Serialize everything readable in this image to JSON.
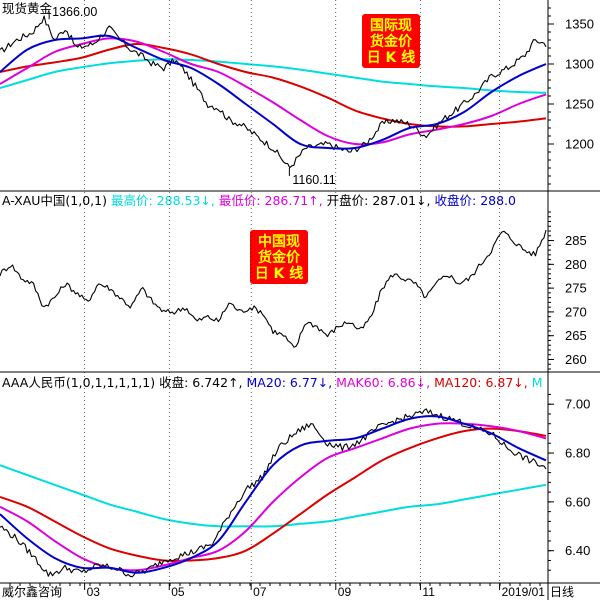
{
  "app": {
    "brand": "威尔鑫咨询",
    "period_label": "日线"
  },
  "colors": {
    "price": "#000000",
    "ma20": "#0000cc",
    "ma60": "#dd00dd",
    "ma120": "#dd0000",
    "ma250": "#00dddd",
    "badge_bg": "#ff0000",
    "badge_text": "#ffff00",
    "grid": "#000000"
  },
  "chart_data": [
    {
      "type": "line",
      "panel": "spot-gold",
      "title": "现货黄金",
      "badge": [
        "国际现",
        "货金价",
        "日 K 线"
      ],
      "ylim": [
        1145,
        1375
      ],
      "yticks": [
        1200,
        1250,
        1300,
        1350
      ],
      "annotations": [
        {
          "text": "1366.00",
          "x": 0.09,
          "y": 1366
        },
        {
          "text": "1160.11",
          "x": 0.53,
          "y": 1160.11
        }
      ],
      "series": [
        {
          "key": "price",
          "x": [
            0,
            0.03,
            0.06,
            0.08,
            0.1,
            0.12,
            0.14,
            0.17,
            0.2,
            0.22,
            0.24,
            0.26,
            0.28,
            0.3,
            0.32,
            0.34,
            0.36,
            0.38,
            0.4,
            0.42,
            0.44,
            0.47,
            0.5,
            0.53,
            0.56,
            0.6,
            0.64,
            0.67,
            0.7,
            0.72,
            0.75,
            0.78,
            0.81,
            0.84,
            0.87,
            0.9,
            0.93,
            0.96,
            0.98,
            1.0
          ],
          "values": [
            1315,
            1330,
            1340,
            1358,
            1330,
            1345,
            1320,
            1325,
            1345,
            1330,
            1318,
            1310,
            1300,
            1295,
            1305,
            1290,
            1270,
            1250,
            1245,
            1230,
            1225,
            1210,
            1195,
            1170,
            1195,
            1200,
            1190,
            1200,
            1225,
            1230,
            1225,
            1210,
            1230,
            1245,
            1262,
            1285,
            1295,
            1310,
            1330,
            1325
          ]
        },
        {
          "key": "ma20",
          "x": [
            0,
            0.05,
            0.1,
            0.15,
            0.2,
            0.25,
            0.3,
            0.35,
            0.4,
            0.45,
            0.5,
            0.55,
            0.6,
            0.65,
            0.7,
            0.75,
            0.8,
            0.85,
            0.9,
            0.95,
            1.0
          ],
          "values": [
            1290,
            1318,
            1330,
            1332,
            1335,
            1320,
            1305,
            1295,
            1275,
            1250,
            1225,
            1200,
            1195,
            1195,
            1205,
            1220,
            1225,
            1240,
            1265,
            1285,
            1300
          ]
        },
        {
          "key": "ma60",
          "x": [
            0,
            0.05,
            0.1,
            0.15,
            0.2,
            0.25,
            0.3,
            0.35,
            0.4,
            0.45,
            0.5,
            0.55,
            0.6,
            0.65,
            0.7,
            0.75,
            0.8,
            0.85,
            0.9,
            0.95,
            1.0
          ],
          "values": [
            1275,
            1295,
            1315,
            1325,
            1332,
            1328,
            1315,
            1300,
            1290,
            1272,
            1252,
            1230,
            1210,
            1200,
            1202,
            1212,
            1218,
            1225,
            1235,
            1250,
            1262
          ]
        },
        {
          "key": "ma120",
          "x": [
            0,
            0.05,
            0.1,
            0.15,
            0.2,
            0.25,
            0.3,
            0.35,
            0.4,
            0.45,
            0.5,
            0.55,
            0.6,
            0.65,
            0.7,
            0.75,
            0.8,
            0.85,
            0.9,
            0.95,
            1.0
          ],
          "values": [
            1290,
            1297,
            1302,
            1308,
            1318,
            1325,
            1320,
            1312,
            1300,
            1290,
            1283,
            1272,
            1258,
            1242,
            1232,
            1225,
            1222,
            1222,
            1225,
            1228,
            1232
          ]
        },
        {
          "key": "ma250",
          "x": [
            0,
            0.05,
            0.1,
            0.15,
            0.2,
            0.25,
            0.3,
            0.35,
            0.4,
            0.45,
            0.5,
            0.55,
            0.6,
            0.65,
            0.7,
            0.75,
            0.8,
            0.85,
            0.9,
            0.95,
            1.0
          ],
          "values": [
            1270,
            1280,
            1290,
            1296,
            1301,
            1304,
            1306,
            1305,
            1303,
            1300,
            1297,
            1293,
            1288,
            1283,
            1278,
            1275,
            1272,
            1270,
            1267,
            1265,
            1264
          ]
        }
      ]
    },
    {
      "type": "line",
      "panel": "a-xau",
      "legend": [
        {
          "text": "A-XAU中国(1,0,1)",
          "color": "#000000"
        },
        {
          "text": "最高价: 288.53↓,",
          "color": "#00dddd"
        },
        {
          "text": "最低价: 286.71↑,",
          "color": "#dd00dd"
        },
        {
          "text": "开盘价: 287.01↓,",
          "color": "#000000"
        },
        {
          "text": "收盘价: 288.0",
          "color": "#0000cc"
        }
      ],
      "badge": [
        "中国现",
        "货金价",
        "日 K 线"
      ],
      "ylim": [
        258,
        291
      ],
      "yticks": [
        260,
        265,
        270,
        275,
        280,
        285
      ],
      "series": [
        {
          "key": "price",
          "x": [
            0,
            0.02,
            0.04,
            0.06,
            0.08,
            0.1,
            0.12,
            0.14,
            0.16,
            0.18,
            0.2,
            0.22,
            0.24,
            0.26,
            0.28,
            0.3,
            0.32,
            0.34,
            0.36,
            0.38,
            0.4,
            0.42,
            0.44,
            0.46,
            0.48,
            0.5,
            0.52,
            0.54,
            0.56,
            0.58,
            0.6,
            0.62,
            0.64,
            0.66,
            0.68,
            0.7,
            0.72,
            0.74,
            0.76,
            0.78,
            0.8,
            0.82,
            0.84,
            0.86,
            0.88,
            0.9,
            0.92,
            0.94,
            0.96,
            0.98,
            1.0
          ],
          "values": [
            278,
            280,
            277,
            276,
            271,
            273,
            276,
            274,
            272,
            276,
            275,
            273,
            271,
            275,
            272,
            270,
            270,
            271,
            268,
            269,
            268,
            272,
            270,
            271,
            270,
            266,
            265,
            262,
            268,
            267,
            265,
            267,
            268,
            266,
            269,
            275,
            278,
            277,
            276,
            273,
            276,
            278,
            276,
            277,
            280,
            283,
            287,
            285,
            283,
            282,
            287
          ]
        }
      ]
    },
    {
      "type": "line",
      "panel": "aaa-cny",
      "legend": [
        {
          "text": "AAA人民币(1,0,1,1,1,1,1)",
          "color": "#000000"
        },
        {
          "text": "收盘: 6.742↑,",
          "color": "#000000"
        },
        {
          "text": "MA20: 6.77↓,",
          "color": "#0000cc"
        },
        {
          "text": "MAK60: 6.86↓,",
          "color": "#dd00dd"
        },
        {
          "text": "MA120: 6.87↓,",
          "color": "#dd0000"
        },
        {
          "text": "M",
          "color": "#00dddd"
        }
      ],
      "ylim": [
        6.28,
        7.05
      ],
      "yticks": [
        6.4,
        6.6,
        6.8,
        7.0
      ],
      "xticks": [
        "03",
        "05",
        "07",
        "09",
        "11",
        "2019/01"
      ],
      "series": [
        {
          "key": "price",
          "x": [
            0,
            0.03,
            0.06,
            0.09,
            0.12,
            0.15,
            0.18,
            0.21,
            0.24,
            0.27,
            0.3,
            0.33,
            0.36,
            0.39,
            0.42,
            0.45,
            0.48,
            0.51,
            0.54,
            0.57,
            0.6,
            0.63,
            0.66,
            0.69,
            0.72,
            0.75,
            0.78,
            0.81,
            0.84,
            0.87,
            0.9,
            0.93,
            0.96,
            1.0
          ],
          "values": [
            6.5,
            6.45,
            6.38,
            6.3,
            6.33,
            6.31,
            6.34,
            6.33,
            6.3,
            6.32,
            6.36,
            6.38,
            6.4,
            6.43,
            6.55,
            6.65,
            6.7,
            6.82,
            6.88,
            6.92,
            6.84,
            6.82,
            6.85,
            6.9,
            6.93,
            6.95,
            6.97,
            6.95,
            6.93,
            6.9,
            6.88,
            6.82,
            6.78,
            6.74
          ]
        },
        {
          "key": "ma20",
          "x": [
            0,
            0.05,
            0.1,
            0.15,
            0.2,
            0.25,
            0.3,
            0.35,
            0.4,
            0.45,
            0.5,
            0.55,
            0.6,
            0.65,
            0.7,
            0.75,
            0.8,
            0.85,
            0.9,
            0.95,
            1.0
          ],
          "values": [
            6.55,
            6.45,
            6.37,
            6.33,
            6.33,
            6.31,
            6.33,
            6.37,
            6.44,
            6.6,
            6.75,
            6.83,
            6.85,
            6.86,
            6.9,
            6.94,
            6.95,
            6.92,
            6.88,
            6.82,
            6.77
          ]
        },
        {
          "key": "ma60",
          "x": [
            0,
            0.05,
            0.1,
            0.15,
            0.2,
            0.25,
            0.3,
            0.35,
            0.4,
            0.45,
            0.5,
            0.55,
            0.6,
            0.65,
            0.7,
            0.75,
            0.8,
            0.85,
            0.9,
            0.95,
            1.0
          ],
          "values": [
            6.58,
            6.52,
            6.44,
            6.37,
            6.33,
            6.32,
            6.34,
            6.37,
            6.4,
            6.48,
            6.6,
            6.7,
            6.78,
            6.82,
            6.86,
            6.9,
            6.92,
            6.92,
            6.91,
            6.89,
            6.86
          ]
        },
        {
          "key": "ma120",
          "x": [
            0,
            0.05,
            0.1,
            0.15,
            0.2,
            0.25,
            0.3,
            0.35,
            0.4,
            0.45,
            0.5,
            0.55,
            0.6,
            0.65,
            0.7,
            0.75,
            0.8,
            0.85,
            0.9,
            0.95,
            1.0
          ],
          "values": [
            6.62,
            6.58,
            6.52,
            6.46,
            6.41,
            6.38,
            6.36,
            6.36,
            6.37,
            6.4,
            6.47,
            6.55,
            6.63,
            6.7,
            6.77,
            6.82,
            6.86,
            6.89,
            6.9,
            6.89,
            6.87
          ]
        },
        {
          "key": "ma250",
          "x": [
            0,
            0.05,
            0.1,
            0.15,
            0.2,
            0.25,
            0.3,
            0.35,
            0.4,
            0.45,
            0.5,
            0.55,
            0.6,
            0.65,
            0.7,
            0.75,
            0.8,
            0.85,
            0.9,
            0.95,
            1.0
          ],
          "values": [
            6.75,
            6.71,
            6.67,
            6.63,
            6.59,
            6.56,
            6.53,
            6.51,
            6.5,
            6.5,
            6.5,
            6.51,
            6.52,
            6.54,
            6.56,
            6.58,
            6.59,
            6.61,
            6.63,
            6.65,
            6.67
          ]
        }
      ]
    }
  ]
}
